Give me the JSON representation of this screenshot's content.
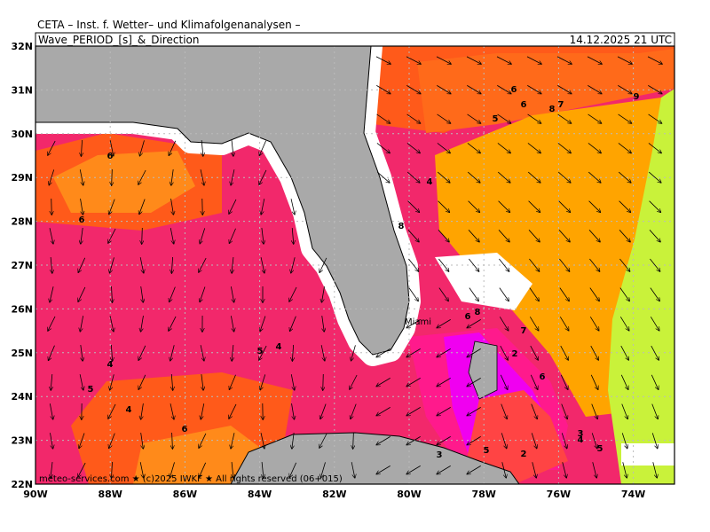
{
  "header": {
    "institute": "CETA  –  Inst. f. Wetter– und Klimafolgenanalysen  –",
    "title": "Wave_PERIOD_[s]_&_Direction",
    "valid_time": "14.12.2025 21 UTC"
  },
  "map": {
    "lat_labels": [
      "32N",
      "31N",
      "30N",
      "29N",
      "28N",
      "27N",
      "26N",
      "25N",
      "24N",
      "23N",
      "22N"
    ],
    "lon_labels": [
      "90W",
      "88W",
      "86W",
      "84W",
      "82W",
      "80W",
      "78W",
      "76W",
      "74W"
    ],
    "place_label": "Miami",
    "contour_labels": [
      6,
      6,
      6,
      6,
      7,
      8,
      9,
      5,
      4,
      8,
      6,
      8,
      7,
      2,
      6,
      4,
      5,
      4,
      5,
      4,
      6,
      3,
      4,
      5,
      3,
      5,
      2
    ],
    "footer": "meteo-services.com ★ (c)2025 IWKF ★ All rights reserved (06+015)"
  }
}
